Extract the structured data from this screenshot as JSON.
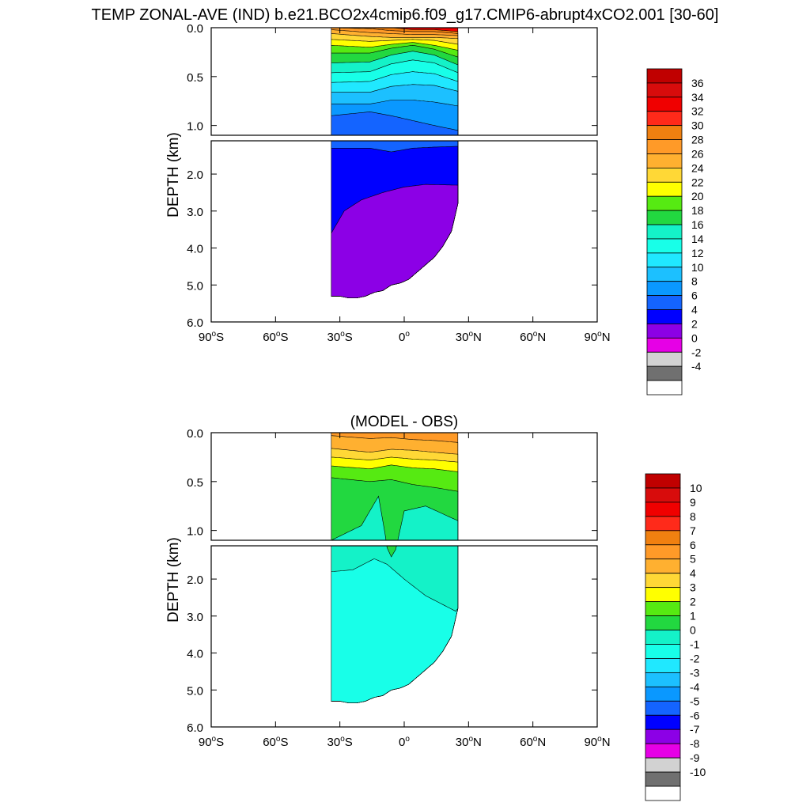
{
  "title": "TEMP ZONAL-AVE (IND) b.e21.BCO2x4cmip6.f09_g17.CMIP6-abrupt4xCO2.001 [30-60]",
  "chart_data": [
    {
      "type": "contour",
      "id": "model",
      "title": "",
      "ylabel": "DEPTH (km)",
      "xlabel": "",
      "xlim": [
        -90,
        90
      ],
      "ylim": [
        6.0,
        0.0
      ],
      "depth_break_km": 1.1,
      "x_ticks": [
        -90,
        -60,
        -30,
        0,
        30,
        60,
        90
      ],
      "x_tick_labels": [
        {
          "value": "90",
          "sup": "o",
          "suffix": "S"
        },
        {
          "value": "60",
          "sup": "o",
          "suffix": "S"
        },
        {
          "value": "30",
          "sup": "o",
          "suffix": "S"
        },
        {
          "value": "0",
          "sup": "o",
          "suffix": ""
        },
        {
          "value": "30",
          "sup": "o",
          "suffix": "N"
        },
        {
          "value": "60",
          "sup": "o",
          "suffix": "N"
        },
        {
          "value": "90",
          "sup": "o",
          "suffix": "N"
        }
      ],
      "y_ticks_upper": [
        {
          "v": 0.0,
          "label": "0.0"
        },
        {
          "v": 0.5,
          "label": "0.5"
        },
        {
          "v": 1.0,
          "label": "1.0"
        }
      ],
      "y_ticks_lower": [
        {
          "v": 2.0,
          "label": "2.0"
        },
        {
          "v": 3.0,
          "label": "3.0"
        },
        {
          "v": 4.0,
          "label": "4.0"
        },
        {
          "v": 5.0,
          "label": "5.0"
        },
        {
          "v": 6.0,
          "label": "6.0"
        }
      ],
      "colorbar": {
        "labels": [
          "36",
          "34",
          "32",
          "30",
          "28",
          "26",
          "24",
          "22",
          "20",
          "18",
          "16",
          "14",
          "12",
          "10",
          "8",
          "6",
          "4",
          "2",
          "0",
          "-2",
          "-4"
        ],
        "colors": [
          "#c00000",
          "#d80c0c",
          "#f00000",
          "#ff2a1a",
          "#f08010",
          "#ff9a28",
          "#ffb030",
          "#ffd836",
          "#ffff00",
          "#56ea12",
          "#22d840",
          "#14f2c8",
          "#18ffe8",
          "#20e8ff",
          "#1cc0ff",
          "#0a98ff",
          "#1464ff",
          "#0000ff",
          "#8c00e6",
          "#e600e6",
          "#d2d2d2",
          "#707070",
          "#ffffff"
        ]
      },
      "profiles": {
        "ocean_extent_lat": [
          -34,
          25
        ],
        "bottom_depth_km_by_lat": [
          [
            -34,
            5.3
          ],
          [
            -30,
            5.3
          ],
          [
            -26,
            5.35
          ],
          [
            -22,
            5.35
          ],
          [
            -18,
            5.3
          ],
          [
            -14,
            5.2
          ],
          [
            -10,
            5.15
          ],
          [
            -6,
            5.0
          ],
          [
            -2,
            4.95
          ],
          [
            2,
            4.85
          ],
          [
            6,
            4.65
          ],
          [
            10,
            4.45
          ],
          [
            14,
            4.25
          ],
          [
            18,
            3.95
          ],
          [
            22,
            3.55
          ],
          [
            25,
            2.8
          ]
        ],
        "isotherm_depth_km_by_lat": [
          {
            "level": 30,
            "depths": [
              [
                -34,
                0.0
              ],
              [
                -16,
                0.0
              ],
              [
                -6,
                0.0
              ],
              [
                4,
                0.02
              ],
              [
                14,
                0.02
              ],
              [
                25,
                0.04
              ]
            ]
          },
          {
            "level": 28,
            "depths": [
              [
                -34,
                0.0
              ],
              [
                -16,
                0.01
              ],
              [
                -6,
                0.03
              ],
              [
                4,
                0.04
              ],
              [
                14,
                0.04
              ],
              [
                25,
                0.06
              ]
            ]
          },
          {
            "level": 26,
            "depths": [
              [
                -34,
                0.02
              ],
              [
                -16,
                0.05
              ],
              [
                -6,
                0.06
              ],
              [
                4,
                0.07
              ],
              [
                14,
                0.07
              ],
              [
                25,
                0.08
              ]
            ]
          },
          {
            "level": 24,
            "depths": [
              [
                -34,
                0.06
              ],
              [
                -16,
                0.09
              ],
              [
                -6,
                0.1
              ],
              [
                4,
                0.1
              ],
              [
                14,
                0.1
              ],
              [
                25,
                0.11
              ]
            ]
          },
          {
            "level": 22,
            "depths": [
              [
                -34,
                0.12
              ],
              [
                -16,
                0.14
              ],
              [
                -6,
                0.13
              ],
              [
                4,
                0.12
              ],
              [
                14,
                0.13
              ],
              [
                25,
                0.17
              ]
            ]
          },
          {
            "level": 20,
            "depths": [
              [
                -34,
                0.18
              ],
              [
                -16,
                0.2
              ],
              [
                -6,
                0.17
              ],
              [
                4,
                0.15
              ],
              [
                14,
                0.18
              ],
              [
                25,
                0.23
              ]
            ]
          },
          {
            "level": 18,
            "depths": [
              [
                -34,
                0.26
              ],
              [
                -16,
                0.26
              ],
              [
                -6,
                0.21
              ],
              [
                4,
                0.18
              ],
              [
                14,
                0.22
              ],
              [
                25,
                0.3
              ]
            ]
          },
          {
            "level": 16,
            "depths": [
              [
                -34,
                0.36
              ],
              [
                -16,
                0.35
              ],
              [
                -6,
                0.28
              ],
              [
                4,
                0.24
              ],
              [
                14,
                0.28
              ],
              [
                25,
                0.38
              ]
            ]
          },
          {
            "level": 14,
            "depths": [
              [
                -34,
                0.46
              ],
              [
                -16,
                0.45
              ],
              [
                -6,
                0.37
              ],
              [
                4,
                0.33
              ],
              [
                14,
                0.36
              ],
              [
                25,
                0.46
              ]
            ]
          },
          {
            "level": 12,
            "depths": [
              [
                -34,
                0.56
              ],
              [
                -16,
                0.55
              ],
              [
                -6,
                0.48
              ],
              [
                4,
                0.45
              ],
              [
                14,
                0.47
              ],
              [
                25,
                0.55
              ]
            ]
          },
          {
            "level": 10,
            "depths": [
              [
                -34,
                0.66
              ],
              [
                -16,
                0.66
              ],
              [
                -6,
                0.6
              ],
              [
                4,
                0.58
              ],
              [
                14,
                0.59
              ],
              [
                25,
                0.65
              ]
            ]
          },
          {
            "level": 8,
            "depths": [
              [
                -34,
                0.78
              ],
              [
                -16,
                0.78
              ],
              [
                -6,
                0.74
              ],
              [
                4,
                0.74
              ],
              [
                14,
                0.76
              ],
              [
                25,
                0.8
              ]
            ]
          },
          {
            "level": 6,
            "depths": [
              [
                -34,
                0.9
              ],
              [
                -16,
                0.86
              ],
              [
                -6,
                0.9
              ],
              [
                4,
                0.95
              ],
              [
                14,
                1.0
              ],
              [
                25,
                1.05
              ]
            ]
          },
          {
            "level": 4,
            "depths": [
              [
                -34,
                1.3
              ],
              [
                -16,
                1.3
              ],
              [
                -6,
                1.4
              ],
              [
                4,
                1.3
              ],
              [
                14,
                1.27
              ],
              [
                25,
                1.25
              ]
            ]
          },
          {
            "level": 2,
            "depths": [
              [
                -34,
                3.6
              ],
              [
                -28,
                3.0
              ],
              [
                -20,
                2.7
              ],
              [
                -10,
                2.5
              ],
              [
                0,
                2.35
              ],
              [
                10,
                2.28
              ],
              [
                25,
                2.3
              ]
            ]
          }
        ]
      }
    },
    {
      "type": "contour",
      "id": "difference",
      "title": "(MODEL - OBS)",
      "ylabel": "DEPTH (km)",
      "xlabel": "",
      "xlim": [
        -90,
        90
      ],
      "ylim": [
        6.0,
        0.0
      ],
      "depth_break_km": 1.1,
      "x_ticks": [
        -90,
        -60,
        -30,
        0,
        30,
        60,
        90
      ],
      "x_tick_labels": [
        {
          "value": "90",
          "sup": "o",
          "suffix": "S"
        },
        {
          "value": "60",
          "sup": "o",
          "suffix": "S"
        },
        {
          "value": "30",
          "sup": "o",
          "suffix": "S"
        },
        {
          "value": "0",
          "sup": "o",
          "suffix": ""
        },
        {
          "value": "30",
          "sup": "o",
          "suffix": "N"
        },
        {
          "value": "60",
          "sup": "o",
          "suffix": "N"
        },
        {
          "value": "90",
          "sup": "o",
          "suffix": "N"
        }
      ],
      "y_ticks_upper": [
        {
          "v": 0.0,
          "label": "0.0"
        },
        {
          "v": 0.5,
          "label": "0.5"
        },
        {
          "v": 1.0,
          "label": "1.0"
        }
      ],
      "y_ticks_lower": [
        {
          "v": 2.0,
          "label": "2.0"
        },
        {
          "v": 3.0,
          "label": "3.0"
        },
        {
          "v": 4.0,
          "label": "4.0"
        },
        {
          "v": 5.0,
          "label": "5.0"
        },
        {
          "v": 6.0,
          "label": "6.0"
        }
      ],
      "colorbar": {
        "labels": [
          "10",
          "9",
          "8",
          "7",
          "6",
          "5",
          "4",
          "3",
          "2",
          "1",
          "0",
          "-1",
          "-2",
          "-3",
          "-4",
          "-5",
          "-6",
          "-7",
          "-8",
          "-9",
          "-10"
        ],
        "colors": [
          "#c00000",
          "#d80c0c",
          "#f00000",
          "#ff2a1a",
          "#f08010",
          "#ff9a28",
          "#ffb030",
          "#ffd836",
          "#ffff00",
          "#56ea12",
          "#22d840",
          "#14f2c8",
          "#18ffe8",
          "#20e8ff",
          "#1cc0ff",
          "#0a98ff",
          "#1464ff",
          "#0000ff",
          "#8c00e6",
          "#e600e6",
          "#d2d2d2",
          "#707070",
          "#ffffff"
        ]
      },
      "profiles": {
        "ocean_extent_lat": [
          -34,
          25
        ],
        "bottom_depth_km_by_lat": [
          [
            -34,
            5.3
          ],
          [
            -30,
            5.3
          ],
          [
            -26,
            5.35
          ],
          [
            -22,
            5.35
          ],
          [
            -18,
            5.3
          ],
          [
            -14,
            5.2
          ],
          [
            -10,
            5.15
          ],
          [
            -6,
            5.0
          ],
          [
            -2,
            4.95
          ],
          [
            2,
            4.85
          ],
          [
            6,
            4.65
          ],
          [
            10,
            4.45
          ],
          [
            14,
            4.25
          ],
          [
            18,
            3.95
          ],
          [
            22,
            3.55
          ],
          [
            25,
            2.8
          ]
        ],
        "isotherm_depth_km_by_lat": [
          {
            "level": 5,
            "depths": [
              [
                -34,
                0.03
              ],
              [
                -16,
                0.06
              ],
              [
                -6,
                0.05
              ],
              [
                4,
                0.07
              ],
              [
                14,
                0.08
              ],
              [
                25,
                0.1
              ]
            ]
          },
          {
            "level": 4,
            "depths": [
              [
                -34,
                0.16
              ],
              [
                -16,
                0.2
              ],
              [
                -6,
                0.17
              ],
              [
                4,
                0.18
              ],
              [
                14,
                0.2
              ],
              [
                25,
                0.22
              ]
            ]
          },
          {
            "level": 3,
            "depths": [
              [
                -34,
                0.25
              ],
              [
                -16,
                0.28
              ],
              [
                -6,
                0.25
              ],
              [
                4,
                0.27
              ],
              [
                14,
                0.28
              ],
              [
                25,
                0.3
              ]
            ]
          },
          {
            "level": 2,
            "depths": [
              [
                -34,
                0.34
              ],
              [
                -16,
                0.37
              ],
              [
                -6,
                0.33
              ],
              [
                4,
                0.36
              ],
              [
                14,
                0.37
              ],
              [
                25,
                0.4
              ]
            ]
          },
          {
            "level": 1,
            "depths": [
              [
                -34,
                0.46
              ],
              [
                -16,
                0.5
              ],
              [
                -6,
                0.48
              ],
              [
                4,
                0.53
              ],
              [
                14,
                0.56
              ],
              [
                25,
                0.6
              ]
            ]
          },
          {
            "level": 0,
            "depths": [
              [
                -34,
                1.1
              ],
              [
                -20,
                0.95
              ],
              [
                -12,
                0.65
              ],
              [
                -6,
                1.4
              ],
              [
                0,
                0.8
              ],
              [
                10,
                0.75
              ],
              [
                20,
                0.85
              ],
              [
                25,
                0.9
              ]
            ]
          },
          {
            "level": -1,
            "depths": [
              [
                -34,
                1.8
              ],
              [
                -24,
                1.75
              ],
              [
                -14,
                1.45
              ],
              [
                -8,
                1.6
              ],
              [
                0,
                2.0
              ],
              [
                10,
                2.45
              ],
              [
                25,
                2.9
              ]
            ]
          }
        ]
      }
    }
  ]
}
